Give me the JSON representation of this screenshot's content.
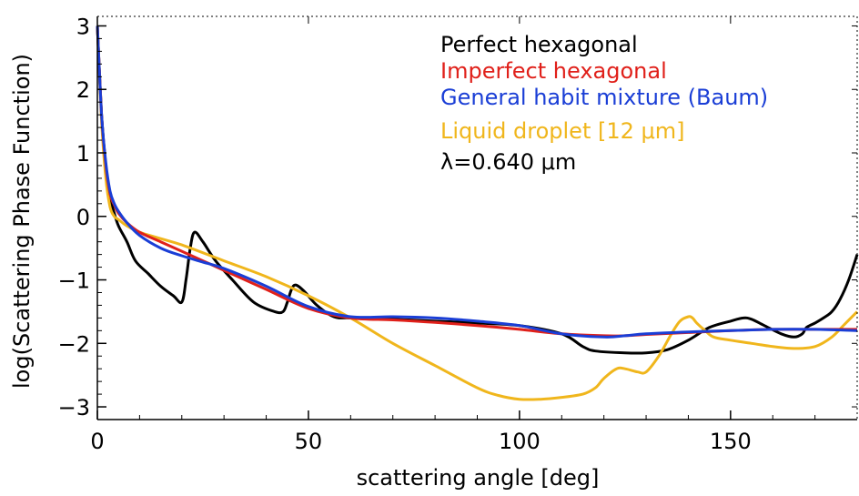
{
  "chart_data": {
    "type": "line",
    "title": "",
    "xlabel": "scattering angle [deg]",
    "ylabel": "log(Scattering Phase Function)",
    "xlim": [
      0,
      180
    ],
    "ylim": [
      -3.2,
      3.15
    ],
    "xticks": [
      0,
      50,
      100,
      150
    ],
    "yticks": [
      -3,
      -2,
      -1,
      0,
      1,
      2,
      3
    ],
    "xtick_labels": [
      "0",
      "50",
      "100",
      "150"
    ],
    "ytick_labels": [
      "−3",
      "−2",
      "−1",
      "0",
      "1",
      "2",
      "3"
    ],
    "legend_position": "top-right",
    "annotation": "λ=0.640 μm",
    "series": [
      {
        "name": "Perfect hexagonal",
        "color": "#000000",
        "x": [
          0,
          1,
          2,
          3,
          4,
          5,
          7,
          9,
          12,
          15,
          18,
          20,
          21,
          22,
          23,
          25,
          28,
          32,
          37,
          42,
          44,
          45,
          46,
          47,
          49,
          52,
          56,
          60,
          70,
          80,
          90,
          100,
          110,
          115,
          118,
          125,
          130,
          135,
          140,
          145,
          150,
          153,
          155,
          158,
          162,
          165,
          167,
          168,
          170,
          172,
          174,
          176,
          178,
          180
        ],
        "y": [
          3.0,
          1.6,
          0.8,
          0.3,
          0.05,
          -0.15,
          -0.4,
          -0.7,
          -0.9,
          -1.1,
          -1.25,
          -1.35,
          -1.0,
          -0.5,
          -0.25,
          -0.4,
          -0.7,
          -1.0,
          -1.35,
          -1.5,
          -1.5,
          -1.35,
          -1.15,
          -1.08,
          -1.18,
          -1.4,
          -1.58,
          -1.6,
          -1.62,
          -1.65,
          -1.68,
          -1.72,
          -1.85,
          -2.05,
          -2.12,
          -2.15,
          -2.15,
          -2.1,
          -1.95,
          -1.75,
          -1.65,
          -1.6,
          -1.62,
          -1.72,
          -1.85,
          -1.9,
          -1.85,
          -1.75,
          -1.68,
          -1.6,
          -1.5,
          -1.3,
          -1.0,
          -0.6
        ]
      },
      {
        "name": "Imperfect hexagonal",
        "color": "#e0201a",
        "x": [
          0,
          1,
          2,
          3,
          4,
          5,
          7,
          10,
          15,
          20,
          25,
          30,
          40,
          50,
          60,
          70,
          80,
          90,
          100,
          110,
          120,
          125,
          130,
          140,
          150,
          160,
          170,
          180
        ],
        "y": [
          3.0,
          1.6,
          0.8,
          0.35,
          0.18,
          0.05,
          -0.1,
          -0.25,
          -0.4,
          -0.55,
          -0.7,
          -0.85,
          -1.15,
          -1.45,
          -1.6,
          -1.63,
          -1.67,
          -1.72,
          -1.78,
          -1.85,
          -1.88,
          -1.88,
          -1.86,
          -1.83,
          -1.8,
          -1.78,
          -1.78,
          -1.78
        ]
      },
      {
        "name": "General habit mixture (Baum)",
        "color": "#1a3ed6",
        "x": [
          0,
          1,
          2,
          3,
          4,
          5,
          7,
          10,
          15,
          20,
          25,
          30,
          40,
          50,
          60,
          70,
          80,
          90,
          100,
          110,
          120,
          125,
          130,
          140,
          150,
          160,
          170,
          180
        ],
        "y": [
          3.0,
          1.6,
          0.85,
          0.4,
          0.2,
          0.08,
          -0.1,
          -0.3,
          -0.5,
          -0.62,
          -0.72,
          -0.82,
          -1.1,
          -1.42,
          -1.58,
          -1.58,
          -1.6,
          -1.65,
          -1.72,
          -1.85,
          -1.9,
          -1.88,
          -1.85,
          -1.82,
          -1.8,
          -1.78,
          -1.78,
          -1.8
        ]
      },
      {
        "name": "Liquid droplet [12 μm]",
        "color": "#f0b61c",
        "x": [
          0,
          1,
          2,
          3,
          4,
          5,
          7,
          10,
          15,
          20,
          30,
          40,
          50,
          60,
          70,
          80,
          90,
          95,
          100,
          105,
          110,
          115,
          118,
          120,
          123,
          125,
          128,
          130,
          133,
          136,
          138,
          140,
          141,
          142,
          144,
          146,
          150,
          155,
          160,
          165,
          170,
          174,
          177,
          180
        ],
        "y": [
          3.0,
          1.5,
          0.6,
          0.15,
          0.0,
          -0.05,
          -0.15,
          -0.25,
          -0.35,
          -0.45,
          -0.7,
          -0.95,
          -1.25,
          -1.6,
          -2.0,
          -2.35,
          -2.7,
          -2.82,
          -2.88,
          -2.88,
          -2.85,
          -2.8,
          -2.7,
          -2.55,
          -2.4,
          -2.4,
          -2.45,
          -2.45,
          -2.2,
          -1.85,
          -1.65,
          -1.58,
          -1.6,
          -1.68,
          -1.8,
          -1.9,
          -1.95,
          -2.0,
          -2.05,
          -2.08,
          -2.05,
          -1.9,
          -1.7,
          -1.5
        ]
      }
    ]
  }
}
